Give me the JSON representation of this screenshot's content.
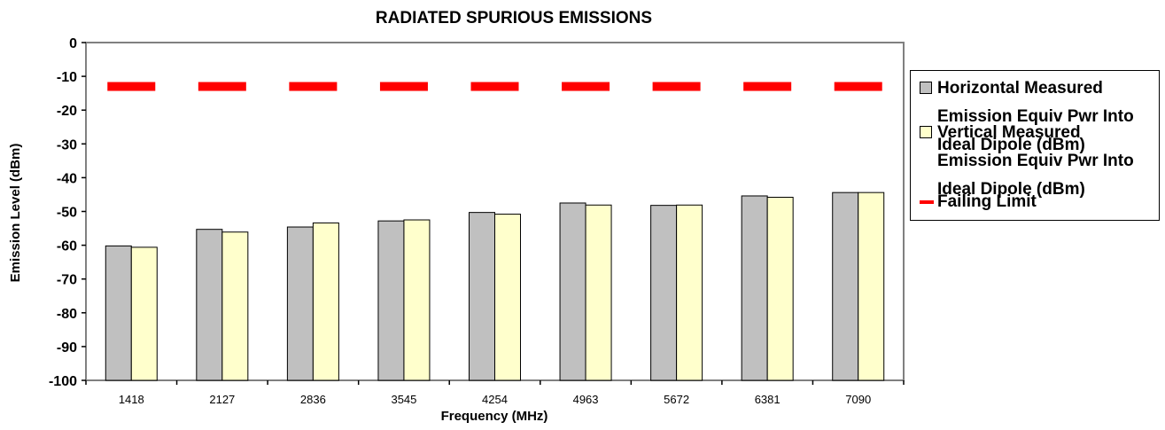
{
  "chart_data": {
    "type": "bar",
    "title": "RADIATED SPURIOUS EMISSIONS",
    "xlabel": "Frequency (MHz)",
    "ylabel": "Emission Level (dBm)",
    "ylim": [
      -100,
      0
    ],
    "yticks": [
      0,
      -10,
      -20,
      -30,
      -40,
      -50,
      -60,
      -70,
      -80,
      -90,
      -100
    ],
    "categories": [
      "1418",
      "2127",
      "2836",
      "3545",
      "4254",
      "4963",
      "5672",
      "6381",
      "7090"
    ],
    "series": [
      {
        "name": "Horizontal Measured Emission Equiv Pwr Into Ideal Dipole (dBm)",
        "type": "bar",
        "color": "#c0c0c0",
        "values": [
          -60.2,
          -55.3,
          -54.6,
          -52.8,
          -50.3,
          -47.5,
          -48.2,
          -45.4,
          -44.4
        ]
      },
      {
        "name": "Vertical Measured Emission Equiv Pwr Into Ideal Dipole (dBm)",
        "type": "bar",
        "color": "#ffffcc",
        "values": [
          -60.6,
          -56.1,
          -53.4,
          -52.5,
          -50.8,
          -48.1,
          -48.1,
          -45.8,
          -44.4
        ]
      },
      {
        "name": "Failing Limit",
        "type": "line",
        "style": "dashed",
        "color": "#ff0000",
        "values": [
          -13,
          -13,
          -13,
          -13,
          -13,
          -13,
          -13,
          -13,
          -13
        ]
      }
    ],
    "legend_position": "right",
    "grid": false
  }
}
